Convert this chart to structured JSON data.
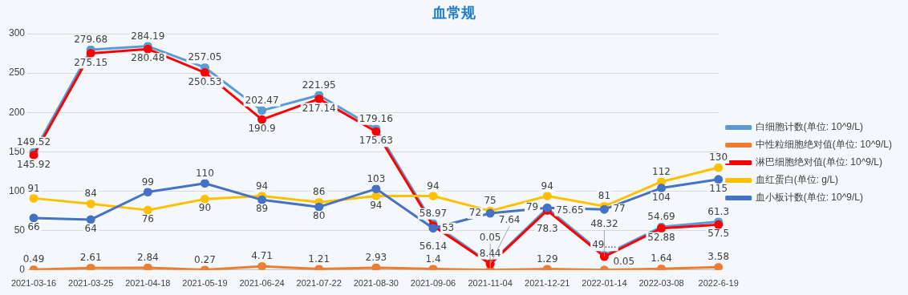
{
  "chart_data": {
    "type": "line",
    "title": "血常规",
    "categories": [
      "2021-03-16",
      "2021-03-25",
      "2021-04-18",
      "2021-05-19",
      "2021-06-24",
      "2021-07-22",
      "2021-08-30",
      "2021-09-06",
      "2021-11-04",
      "2021-12-21",
      "2022-01-14",
      "2022-03-08",
      "2022-6-19"
    ],
    "series": [
      {
        "name": "白细胞计数(单位: 10^9/L)",
        "color": "#5b9bd5",
        "values": [
          149.52,
          279.68,
          284.19,
          257.05,
          202.47,
          221.95,
          179.16,
          58.97,
          8.44,
          78.3,
          19,
          54.69,
          61.3
        ],
        "value_labels": [
          "149.52",
          "279.68",
          "284.19",
          "257.05",
          "202.47",
          "221.95",
          "179.16",
          "58.97",
          "8.44",
          "78.3",
          null,
          "54.69",
          "61.3"
        ]
      },
      {
        "name": "中性粒细胞绝对值(单位: 10^9/L)",
        "color": "#ed7d31",
        "values": [
          0.49,
          2.61,
          2.84,
          0.27,
          4.71,
          1.21,
          2.93,
          1.4,
          0.05,
          1.29,
          0.05,
          1.64,
          3.58
        ],
        "value_labels": [
          "0.49",
          "2.61",
          "2.84",
          "0.27",
          "4.71",
          "1.21",
          "2.93",
          "1.4",
          "0.05",
          "1.29",
          "0.05",
          "1.64",
          "3.58"
        ]
      },
      {
        "name": "淋巴细胞绝对值(单位: 10^9/L)",
        "color": "#ff0000",
        "values": [
          145.92,
          275.15,
          280.48,
          250.53,
          190.9,
          217.14,
          175.63,
          56.14,
          7.64,
          75.65,
          17,
          52.88,
          57.5
        ],
        "value_labels": [
          "145.92",
          "275.15",
          "280.48",
          "250.53",
          "190.9",
          "217.14",
          "175.63",
          "56.14",
          "7.64",
          "75.65",
          null,
          "52.88",
          "57.5"
        ]
      },
      {
        "name": "血红蛋白(单位: g/L)",
        "color": "#ffc000",
        "values": [
          91,
          84,
          76,
          90,
          94,
          86,
          94,
          94,
          75,
          94,
          81,
          112,
          130
        ],
        "value_labels": [
          "91",
          "84",
          "76",
          "90",
          "94",
          "86",
          "94",
          "94",
          "75",
          "94",
          "81",
          "112",
          "130"
        ]
      },
      {
        "name": "血小板计数(单位: 10^9/L)",
        "color": "#4472c4",
        "values": [
          66,
          64,
          99,
          110,
          89,
          80,
          103,
          53,
          72,
          79,
          77,
          104,
          115
        ],
        "value_labels": [
          "66",
          "64",
          "99",
          "110",
          "89",
          "80",
          "103",
          "53",
          "72",
          "79",
          "77",
          "104",
          "115"
        ]
      }
    ],
    "annotations": [
      {
        "text": "49....",
        "x": "2022-01-14",
        "y": 19
      },
      {
        "text": "48.32",
        "x": "2022-01-14",
        "y": 17
      }
    ],
    "ylim": [
      0,
      300
    ],
    "yticks": [
      0,
      50,
      100,
      150,
      200,
      250,
      300
    ],
    "grid": "y",
    "legend": "right",
    "marker": "circle",
    "line_style": "solid"
  }
}
